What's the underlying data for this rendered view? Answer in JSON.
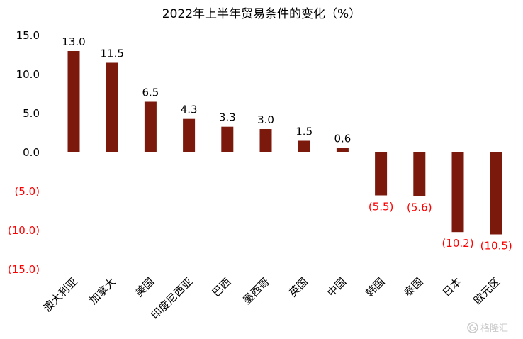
{
  "chart_data": {
    "type": "bar",
    "title": "2022年上半年贸易条件的变化（%）",
    "categories": [
      "澳大利亚",
      "加拿大",
      "美国",
      "印度尼西亚",
      "巴西",
      "墨西哥",
      "英国",
      "中国",
      "韩国",
      "泰国",
      "日本",
      "欧元区"
    ],
    "values": [
      13.0,
      11.5,
      6.5,
      4.3,
      3.3,
      3.0,
      1.5,
      0.6,
      -5.5,
      -5.6,
      -10.2,
      -10.5
    ],
    "data_labels": [
      "13.0",
      "11.5",
      "6.5",
      "4.3",
      "3.3",
      "3.0",
      "1.5",
      "0.6",
      "(5.5)",
      "(5.6)",
      "(10.2)",
      "(10.5)"
    ],
    "ylim": [
      -15,
      15
    ],
    "yticks": [
      15,
      10,
      5,
      0,
      -5,
      -10,
      -15
    ],
    "ytick_labels": [
      "15.0",
      "10.0",
      "5.0",
      "0.0",
      "(5.0)",
      "(10.0)",
      "(15.0)"
    ],
    "xlabel": "",
    "ylabel": "",
    "grid": false,
    "colors": {
      "bar": "#7b1a0c",
      "negative_text": "#ff0000",
      "positive_text": "#000000"
    }
  },
  "watermark": {
    "icon": "gelonghui-logo-icon",
    "text": "格隆汇"
  }
}
